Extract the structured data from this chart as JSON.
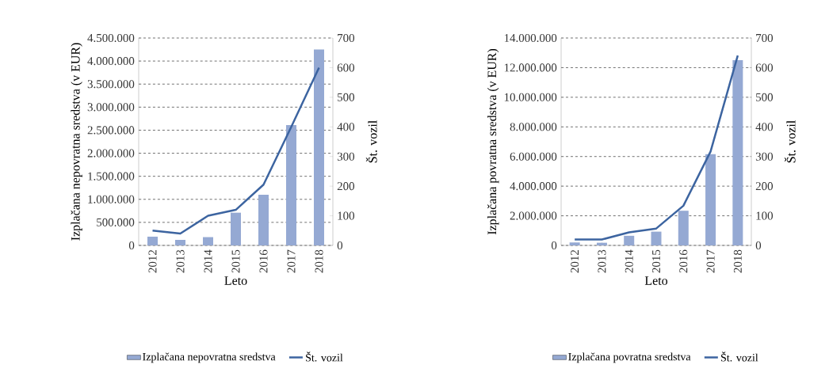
{
  "chart_data": [
    {
      "type": "bar",
      "categories": [
        "2012",
        "2013",
        "2014",
        "2015",
        "2016",
        "2017",
        "2018"
      ],
      "xlabel": "Leto",
      "ylabel": "Izplačana nepovratna sredstva (v EUR)",
      "y2label": "Št. vozil",
      "series": [
        {
          "name": "Izplačana nepovratna sredstva",
          "color": "#95a9d3",
          "values": [
            190000,
            120000,
            180000,
            710000,
            1100000,
            2610000,
            4250000
          ]
        },
        {
          "name": "Št. vozil",
          "type": "line",
          "axis": "y2",
          "color": "#3c64a0",
          "values": [
            50,
            40,
            100,
            120,
            205,
            400,
            600
          ]
        }
      ],
      "ylim": [
        0,
        4500000
      ],
      "yticks": [
        {
          "value": 0,
          "label": "0"
        },
        {
          "value": 500000,
          "label": "500.000"
        },
        {
          "value": 1000000,
          "label": "1.000.000"
        },
        {
          "value": 1500000,
          "label": "1.500.000"
        },
        {
          "value": 2000000,
          "label": "2.000.000"
        },
        {
          "value": 2500000,
          "label": "2.500.000"
        },
        {
          "value": 3000000,
          "label": "3.000.000"
        },
        {
          "value": 3500000,
          "label": "3.500.000"
        },
        {
          "value": 4000000,
          "label": "4.000.000"
        },
        {
          "value": 4500000,
          "label": "4.500.000"
        }
      ],
      "y2lim": [
        0,
        700
      ],
      "y2ticks": [
        0,
        100,
        200,
        300,
        400,
        500,
        600,
        700
      ],
      "grid": "y",
      "legend": "bottom"
    },
    {
      "type": "bar",
      "categories": [
        "2012",
        "2013",
        "2014",
        "2015",
        "2016",
        "2017",
        "2018"
      ],
      "xlabel": "Leto",
      "ylabel": "Izplačana povratna sredstva (v EUR)",
      "y2label": "Št. vozil",
      "series": [
        {
          "name": "Izplačana povratna sredstva",
          "color": "#95a9d3",
          "values": [
            200000,
            180000,
            650000,
            930000,
            2340000,
            6160000,
            12500000
          ]
        },
        {
          "name": "Št. vozil",
          "type": "line",
          "axis": "y2",
          "color": "#3c64a0",
          "values": [
            20,
            20,
            44,
            57,
            134,
            317,
            641
          ]
        }
      ],
      "ylim": [
        0,
        14000000
      ],
      "yticks": [
        {
          "value": 0,
          "label": "0"
        },
        {
          "value": 2000000,
          "label": "2.000.000"
        },
        {
          "value": 4000000,
          "label": "4.000.000"
        },
        {
          "value": 6000000,
          "label": "6.000.000"
        },
        {
          "value": 8000000,
          "label": "8.000.000"
        },
        {
          "value": 10000000,
          "label": "10.000.000"
        },
        {
          "value": 12000000,
          "label": "12.000.000"
        },
        {
          "value": 14000000,
          "label": "14.000.000"
        }
      ],
      "y2lim": [
        0,
        700
      ],
      "y2ticks": [
        0,
        100,
        200,
        300,
        400,
        500,
        600,
        700
      ],
      "grid": "y",
      "legend": "bottom"
    }
  ]
}
